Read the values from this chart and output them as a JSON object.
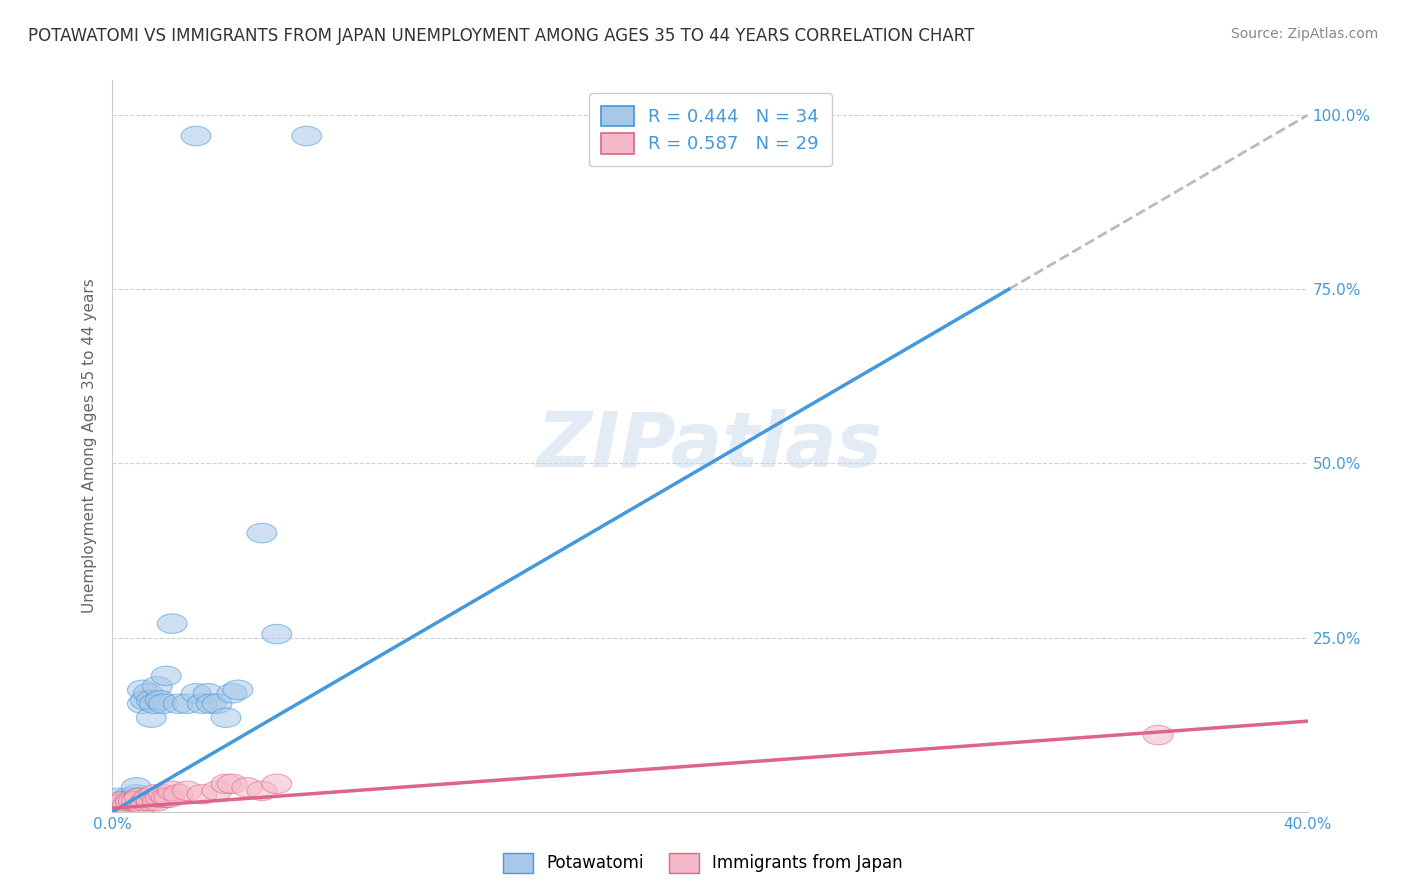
{
  "title": "POTAWATOMI VS IMMIGRANTS FROM JAPAN UNEMPLOYMENT AMONG AGES 35 TO 44 YEARS CORRELATION CHART",
  "source": "Source: ZipAtlas.com",
  "ylabel": "Unemployment Among Ages 35 to 44 years",
  "xmin": 0.0,
  "xmax": 0.4,
  "ymin": 0.0,
  "ymax": 1.05,
  "xticks": [
    0.0,
    0.1,
    0.2,
    0.3,
    0.4
  ],
  "xticklabels": [
    "0.0%",
    "",
    "",
    "",
    "40.0%"
  ],
  "yticks": [
    0.0,
    0.25,
    0.5,
    0.75,
    1.0
  ],
  "yticklabels": [
    "",
    "25.0%",
    "50.0%",
    "75.0%",
    "100.0%"
  ],
  "legend1_label": "R = 0.444   N = 34",
  "legend2_label": "R = 0.587   N = 29",
  "series1_color": "#a8c8e8",
  "series2_color": "#f4b8c8",
  "trendline1_color": "#4499dd",
  "trendline2_color": "#dd6688",
  "watermark_color": "#c8d8ea",
  "watermark": "ZIPatlas",
  "potawatomi_x": [
    0.002,
    0.004,
    0.005,
    0.006,
    0.007,
    0.008,
    0.008,
    0.009,
    0.01,
    0.01,
    0.011,
    0.012,
    0.013,
    0.013,
    0.014,
    0.015,
    0.016,
    0.017,
    0.018,
    0.02,
    0.022,
    0.025,
    0.028,
    0.03,
    0.032,
    0.033,
    0.035,
    0.038,
    0.04,
    0.042,
    0.05,
    0.055,
    0.028,
    0.065
  ],
  "potawatomi_y": [
    0.02,
    0.015,
    0.02,
    0.015,
    0.02,
    0.025,
    0.035,
    0.02,
    0.155,
    0.175,
    0.16,
    0.17,
    0.16,
    0.135,
    0.155,
    0.18,
    0.16,
    0.155,
    0.195,
    0.27,
    0.155,
    0.155,
    0.17,
    0.155,
    0.17,
    0.155,
    0.155,
    0.135,
    0.17,
    0.175,
    0.4,
    0.255,
    0.97,
    0.97
  ],
  "japan_x": [
    0.0,
    0.002,
    0.003,
    0.005,
    0.006,
    0.007,
    0.008,
    0.009,
    0.01,
    0.011,
    0.012,
    0.013,
    0.014,
    0.015,
    0.016,
    0.017,
    0.018,
    0.019,
    0.02,
    0.022,
    0.025,
    0.03,
    0.035,
    0.038,
    0.04,
    0.045,
    0.05,
    0.055,
    0.35
  ],
  "japan_y": [
    0.01,
    0.01,
    0.015,
    0.01,
    0.015,
    0.015,
    0.015,
    0.02,
    0.01,
    0.015,
    0.02,
    0.015,
    0.025,
    0.015,
    0.02,
    0.025,
    0.02,
    0.02,
    0.03,
    0.025,
    0.03,
    0.025,
    0.03,
    0.04,
    0.04,
    0.035,
    0.03,
    0.04,
    0.11
  ],
  "trendline1_x0": 0.0,
  "trendline1_y0": 0.0,
  "trendline1_x1": 0.4,
  "trendline1_y1": 1.0,
  "trendline1_solid_end": 0.3,
  "trendline2_x0": 0.0,
  "trendline2_y0": 0.005,
  "trendline2_x1": 0.4,
  "trendline2_y1": 0.13
}
